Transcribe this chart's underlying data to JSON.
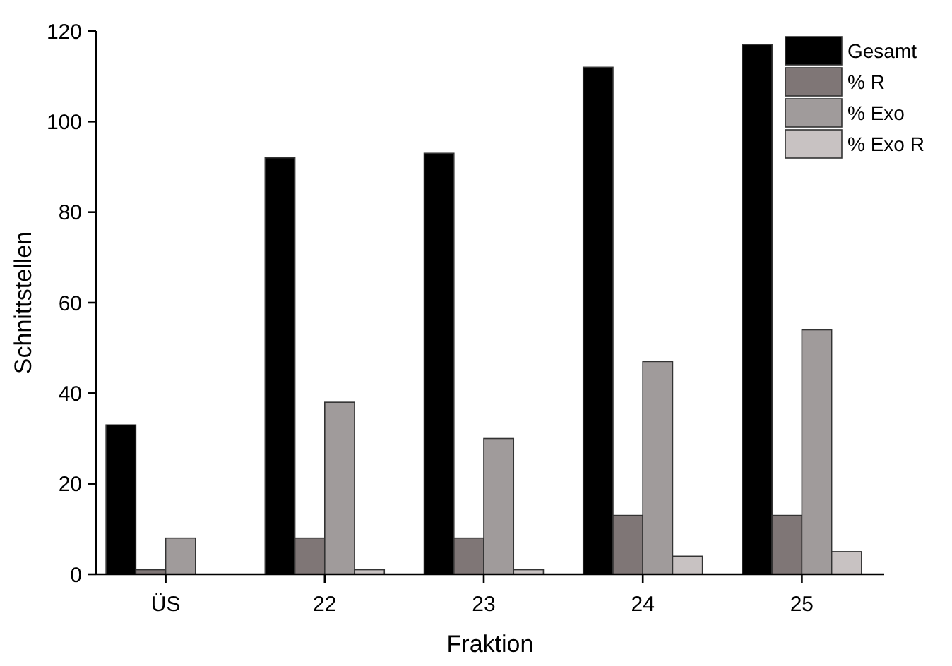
{
  "chart_data": {
    "type": "bar",
    "xlabel": "Fraktion",
    "ylabel": "Schnittstellen",
    "categories": [
      "ÜS",
      "22",
      "23",
      "24",
      "25"
    ],
    "series": [
      {
        "name": "Gesamt",
        "color": "#000000",
        "values": [
          33,
          92,
          93,
          112,
          117
        ]
      },
      {
        "name": "% R",
        "color": "#7f7676",
        "values": [
          1,
          8,
          8,
          13,
          13
        ]
      },
      {
        "name": "% Exo",
        "color": "#a09b9b",
        "values": [
          8,
          38,
          30,
          47,
          54
        ]
      },
      {
        "name": "% Exo R",
        "color": "#c8c2c2",
        "values": [
          0,
          1,
          1,
          4,
          5
        ]
      }
    ],
    "ylim": [
      0,
      120
    ],
    "yticks": [
      0,
      20,
      40,
      60,
      80,
      100,
      120
    ],
    "grid": false,
    "legend": "top right"
  }
}
